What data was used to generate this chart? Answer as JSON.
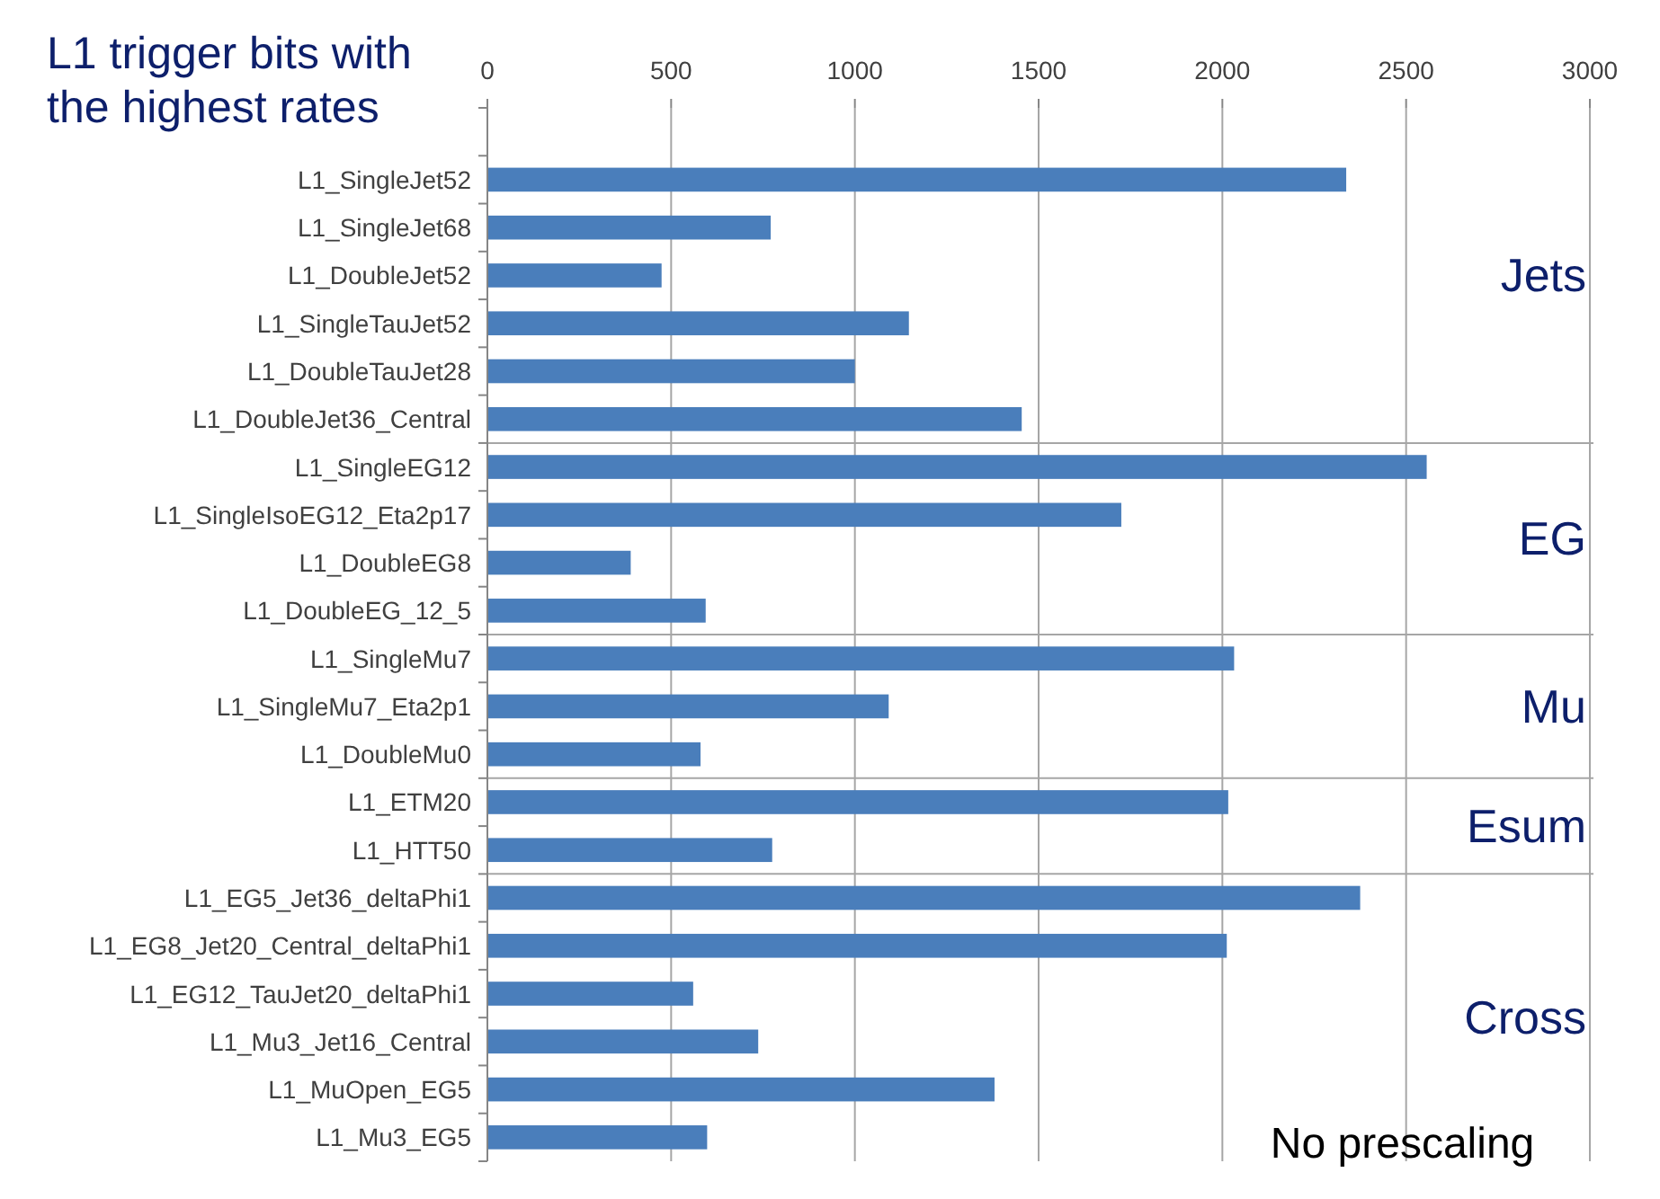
{
  "chart_data": [
    {
      "type": "bar",
      "orientation": "horizontal",
      "title": "L1 trigger bits with the highest rates",
      "categories": [
        null,
        "L1_SingleJet52",
        "L1_SingleJet68",
        "L1_DoubleJet52",
        "L1_SingleTauJet52",
        "L1_DoubleTauJet28",
        "L1_DoubleJet36_Central"
      ],
      "values": [
        null,
        2337,
        771,
        474,
        1147,
        1000,
        1454
      ],
      "color": "#4a7ebb",
      "xlim": [
        0,
        3000
      ],
      "xticks": [
        0,
        500,
        1000,
        1500,
        2000,
        2500,
        3000
      ],
      "grid": "x",
      "annotations": [
        "Jets"
      ]
    },
    {
      "type": "bar",
      "orientation": "horizontal",
      "categories": [
        "L1_SingleEG12",
        "L1_SingleIsoEG12_Eta2p17",
        "L1_DoubleEG8",
        "L1_DoubleEG_12_5"
      ],
      "values": [
        2556,
        1725,
        390,
        594
      ],
      "color": "#4a7ebb",
      "xlim": [
        0,
        3000
      ],
      "xticks": [
        0,
        500,
        1000,
        1500,
        2000,
        2500,
        3000
      ],
      "grid": "x",
      "tick_labels": "y",
      "annotations": [
        "EG"
      ]
    },
    {
      "type": "bar",
      "orientation": "horizontal",
      "categories": [
        "L1_SingleMu7",
        "L1_SingleMu7_Eta2p1",
        "L1_DoubleMu0"
      ],
      "values": [
        2032,
        1092,
        580
      ],
      "color": "#4a7ebb",
      "xlim": [
        0,
        3000
      ],
      "xticks": [
        0,
        500,
        1000,
        1500,
        2000,
        2500,
        3000
      ],
      "grid": "x",
      "tick_labels": "y",
      "annotations": [
        "Mu"
      ]
    },
    {
      "type": "bar",
      "orientation": "horizontal",
      "categories": [
        "L1_ETM20",
        "L1_HTT50"
      ],
      "values": [
        2016,
        775
      ],
      "color": "#4a7ebb",
      "xlim": [
        0,
        3000
      ],
      "xticks": [
        0,
        500,
        1000,
        1500,
        2000,
        2500,
        3000
      ],
      "grid": "x",
      "tick_labels": "y",
      "annotations": [
        "Esum"
      ]
    },
    {
      "type": "bar",
      "orientation": "horizontal",
      "categories": [
        "L1_EG5_Jet36_deltaPhi1",
        "L1_EG8_Jet20_Central_deltaPhi1",
        "L1_EG12_TauJet20_deltaPhi1",
        "L1_Mu3_Jet16_Central",
        "L1_MuOpen_EG5",
        "L1_Mu3_EG5"
      ],
      "values": [
        2375,
        2012,
        560,
        737,
        1380,
        598
      ],
      "color": "#4a7ebb",
      "xlim": [
        0,
        3000
      ],
      "xticks": [
        0,
        500,
        1000,
        1500,
        2000,
        2500,
        3000
      ],
      "grid": "x",
      "tick_labels": "y",
      "annotations": [
        "Cross",
        "No prescaling"
      ]
    }
  ]
}
